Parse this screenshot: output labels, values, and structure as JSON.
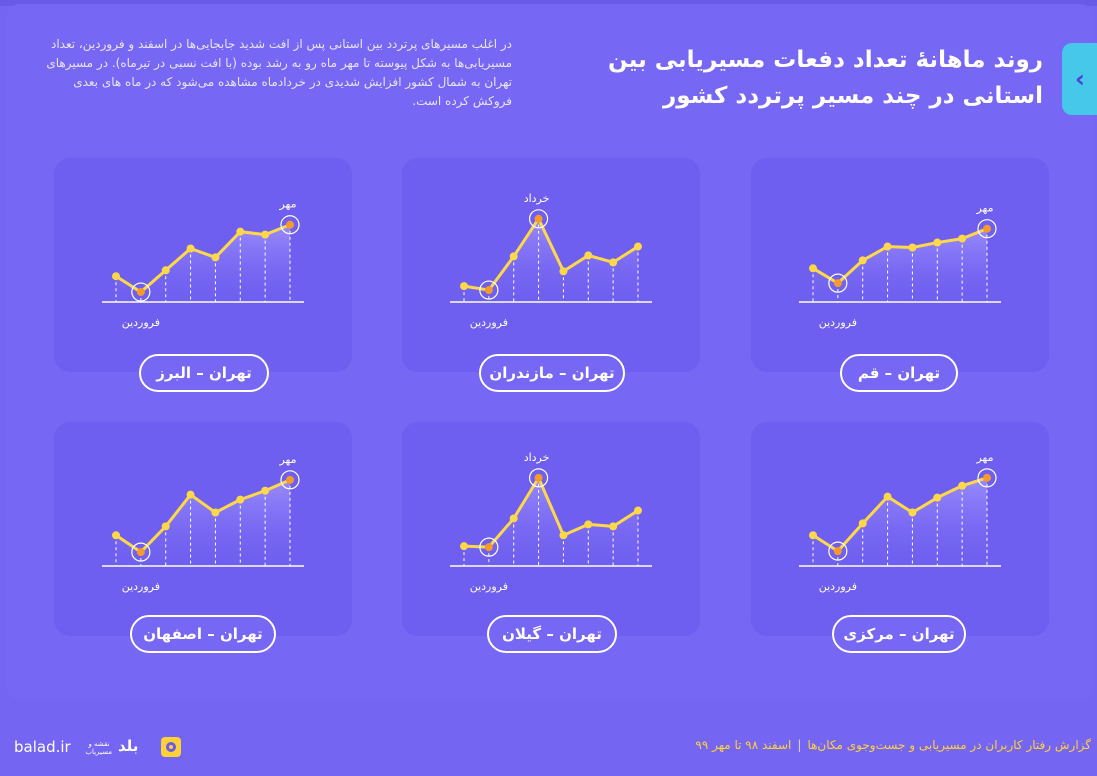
{
  "title": "روند ماهانهٔ تعداد دفعات مسیریابی بین استانی در چند مسیر پرتردد کشور",
  "description": "در اغلب مسیرهای پرتردد بین استانی پس از افت شدید جابجایی‌ها در اسفند و فروردین، تعداد مسیریابی‌ها به شکل پیوسته تا مهر ماه رو به رشد بوده (با افت نسبی در تیرماه). در مسیرهای تهران به شمال کشور افزایش شدیدی در خردادماه مشاهده می‌شود که در ماه های بعدی فروکش کرده است.",
  "side_tab_icon": "chevron-left-icon",
  "colors": {
    "line": "#ffd84a",
    "point": "#ffd84a",
    "highlight": "#f59a2b",
    "card": "#6e5ff0",
    "area_top": "#a393ff"
  },
  "chart_data": [
    {
      "type": "line",
      "label": "تهران – قم",
      "values": [
        30,
        15,
        38,
        52,
        51,
        56,
        60,
        70
      ],
      "ylim": [
        0,
        100
      ],
      "low_label": "فروردین",
      "peak_label": "مهر",
      "low_index": 1,
      "peak_index": 7
    },
    {
      "type": "line",
      "label": "تهران – مازندران",
      "values": [
        12,
        8,
        42,
        80,
        27,
        43,
        36,
        52
      ],
      "ylim": [
        0,
        100
      ],
      "low_label": "فروردین",
      "peak_label": "خرداد",
      "low_index": 1,
      "peak_index": 3
    },
    {
      "type": "line",
      "label": "تهران – البرز",
      "values": [
        22,
        6,
        28,
        50,
        41,
        67,
        64,
        74
      ],
      "ylim": [
        0,
        100
      ],
      "low_label": "فروردین",
      "peak_label": "مهر",
      "low_index": 1,
      "peak_index": 7
    },
    {
      "type": "line",
      "label": "تهران – مرکزی",
      "values": [
        27,
        11,
        39,
        66,
        50,
        65,
        77,
        85
      ],
      "ylim": [
        0,
        100
      ],
      "low_label": "فروردین",
      "peak_label": "مهر",
      "low_index": 1,
      "peak_index": 7
    },
    {
      "type": "line",
      "label": "تهران – گیلان",
      "values": [
        16,
        15,
        44,
        85,
        27,
        38,
        36,
        52
      ],
      "ylim": [
        0,
        100
      ],
      "low_label": "فروردین",
      "peak_label": "خرداد",
      "low_index": 1,
      "peak_index": 3
    },
    {
      "type": "line",
      "label": "تهران – اصفهان",
      "values": [
        27,
        10,
        36,
        68,
        50,
        63,
        72,
        83
      ],
      "ylim": [
        0,
        100
      ],
      "low_label": "فروردین",
      "peak_label": "مهر",
      "low_index": 1,
      "peak_index": 7
    }
  ],
  "footer": {
    "report": "گزارش رفتار کاربران در مسیریابی و جست‌وجوی مکان‌ها",
    "separator": "|",
    "period": "اسفند ۹۸ تا مهر ۹۹",
    "brand_name": "بلد",
    "brand_tagline": "نقشه و مسیریاب",
    "url": "balad.ir"
  }
}
